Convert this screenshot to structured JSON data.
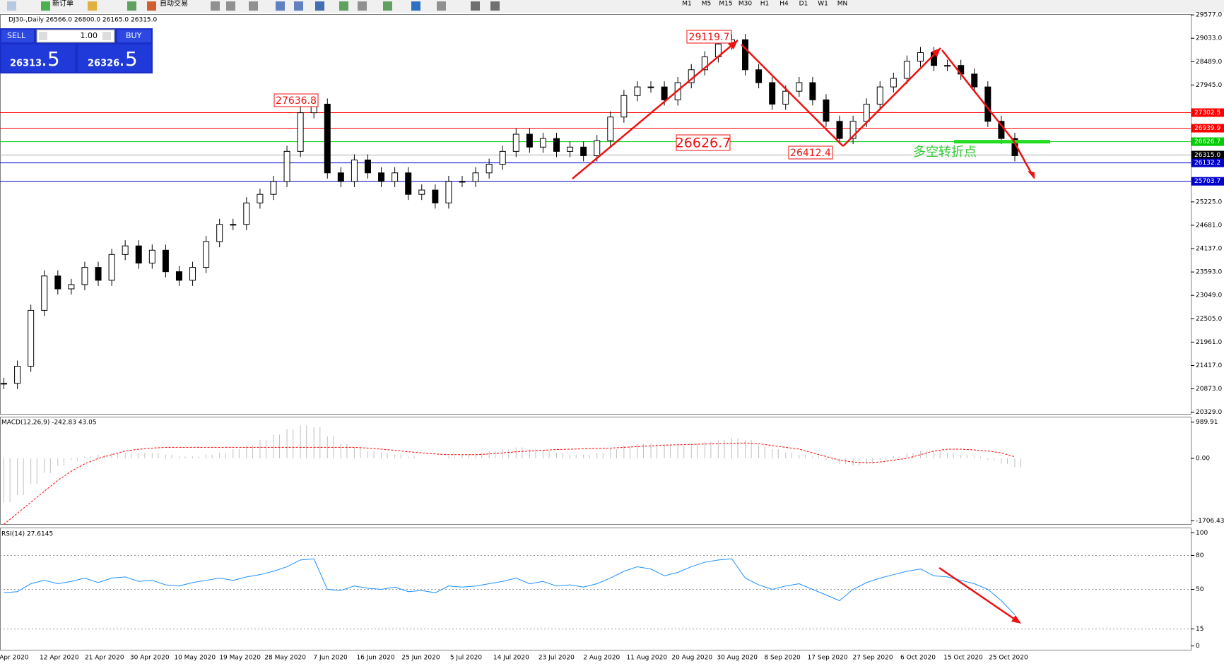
{
  "toolbar": {
    "new_order": "新订单",
    "auto_trading": "自动交易",
    "timeframes": [
      "M1",
      "M5",
      "M15",
      "M30",
      "H1",
      "H4",
      "D1",
      "W1",
      "MN"
    ]
  },
  "trade_panel": {
    "sell": "SELL",
    "volume": "1.00",
    "buy": "BUY",
    "bid_main": "26313",
    "bid_frac": ".5",
    "ask_main": "26326",
    "ask_frac": ".5"
  },
  "chart_data": [
    {
      "type": "candlestick",
      "title": "DJ30-,Daily  26566.0 26800.0 26165.0 26315.0",
      "values": [
        21000,
        21400,
        22700,
        23500,
        23200,
        23300,
        23700,
        23400,
        24000,
        24200,
        23800,
        24100,
        23600,
        23400,
        23700,
        24300,
        24700,
        24700,
        25200,
        25400,
        25700,
        26400,
        27300,
        27500,
        25900,
        25700,
        26200,
        25900,
        25700,
        25900,
        25400,
        25500,
        25200,
        25700,
        25700,
        25900,
        26100,
        26400,
        26800,
        26500,
        26700,
        26400,
        26500,
        26300,
        26650,
        27200,
        27700,
        27900,
        27900,
        27600,
        28000,
        28300,
        28600,
        28900,
        29000,
        28300,
        28000,
        27500,
        27800,
        28000,
        27600,
        27100,
        26700,
        27100,
        27500,
        27900,
        28100,
        28500,
        28700,
        28400,
        28400,
        28200,
        27900,
        27100,
        26700,
        26300
      ],
      "ylim": [
        20274,
        29595
      ],
      "yticks": [
        {
          "value": 29577,
          "label": "29577.0"
        },
        {
          "value": 29033,
          "label": "29033.0"
        },
        {
          "value": 28489,
          "label": "28489.0"
        },
        {
          "value": 27945,
          "label": "27945.0"
        },
        {
          "value": 25225,
          "label": "25225.0"
        },
        {
          "value": 24681,
          "label": "24681.0"
        },
        {
          "value": 24137,
          "label": "24137.0"
        },
        {
          "value": 23593,
          "label": "23593.0"
        },
        {
          "value": 23049,
          "label": "23049.0"
        },
        {
          "value": 22505,
          "label": "22505.0"
        },
        {
          "value": 21961,
          "label": "21961.0"
        },
        {
          "value": 21417,
          "label": "21417.0"
        },
        {
          "value": 20873,
          "label": "20873.0"
        },
        {
          "value": 20329,
          "label": "20329.0"
        }
      ],
      "levels": [
        27302.5,
        26939.9,
        26626.7,
        {
          "value": 26315,
          "label": "26315.0"
        },
        26132.2,
        25703.7
      ],
      "level_colors": [
        "#ff0000",
        "#ff0000",
        "#00cc00",
        "#000000",
        "#0000cc",
        "#0000cc"
      ],
      "peak_labels": [
        29119.7,
        27636.8,
        26412.4
      ],
      "turn_level": 26626.7,
      "turn_label": "多空转折点",
      "x_tick_labels": [
        "Apr 2020",
        "12 Apr 2020",
        "21 Apr 2020",
        "30 Apr 2020",
        "10 May 2020",
        "19 May 2020",
        "28 May 2020",
        "7 Jun 2020",
        "16 Jun 2020",
        "25 Jun 2020",
        "5 Jul 2020",
        "14 Jul 2020",
        "23 Jul 2020",
        "2 Aug 2020",
        "11 Aug 2020",
        "20 Aug 2020",
        "30 Aug 2020",
        "8 Sep 2020",
        "17 Sep 2020",
        "27 Sep 2020",
        "6 Oct 2020",
        "15 Oct 2020",
        "25 Oct 2020"
      ]
    },
    {
      "type": "macd",
      "title": "MACD(12,26,9) -242.83 43.05",
      "values": [
        -1200,
        -1000,
        -700,
        -400,
        -200,
        -50,
        50,
        100,
        150,
        150,
        150,
        150,
        100,
        50,
        50,
        100,
        150,
        250,
        350,
        500,
        650,
        800,
        900,
        850,
        600,
        400,
        300,
        200,
        150,
        100,
        50,
        0,
        0,
        50,
        100,
        150,
        200,
        250,
        300,
        250,
        200,
        150,
        100,
        100,
        150,
        250,
        350,
        400,
        400,
        350,
        350,
        400,
        450,
        500,
        550,
        500,
        350,
        250,
        150,
        100,
        50,
        -50,
        -150,
        -200,
        -150,
        -50,
        50,
        150,
        200,
        200,
        150,
        100,
        50,
        -50,
        -150,
        -242.83
      ],
      "signal": [
        -1800,
        -1500,
        -1200,
        -900,
        -600,
        -350,
        -150,
        0,
        100,
        200,
        250,
        280,
        300,
        300,
        300,
        300,
        300,
        300,
        300,
        300,
        300,
        300,
        300,
        300,
        300,
        300,
        300,
        280,
        250,
        220,
        180,
        150,
        120,
        100,
        100,
        100,
        120,
        150,
        180,
        200,
        220,
        240,
        250,
        260,
        270,
        280,
        300,
        320,
        340,
        360,
        370,
        380,
        390,
        400,
        410,
        420,
        400,
        350,
        300,
        250,
        150,
        50,
        -50,
        -100,
        -120,
        -100,
        -50,
        0,
        100,
        200,
        250,
        250,
        230,
        200,
        150,
        43.05
      ],
      "color": "#c0c0c0",
      "signal_color": "#ff0000",
      "ylim": [
        -1813,
        1118
      ],
      "yticks": [
        989.91,
        {
          "value": 0,
          "label": "0.00"
        },
        -1706.43
      ]
    },
    {
      "type": "rsi",
      "title": "RSI(14) 27.6145",
      "values": [
        47,
        48,
        55,
        58,
        55,
        57,
        60,
        56,
        60,
        61,
        57,
        58,
        54,
        53,
        56,
        58,
        60,
        58,
        61,
        63,
        66,
        70,
        76,
        77,
        50,
        49,
        53,
        51,
        50,
        52,
        48,
        49,
        47,
        53,
        52,
        53,
        55,
        57,
        60,
        55,
        57,
        53,
        54,
        52,
        55,
        60,
        66,
        70,
        68,
        62,
        65,
        70,
        74,
        76,
        77,
        60,
        54,
        50,
        53,
        55,
        50,
        45,
        40,
        50,
        56,
        60,
        63,
        66,
        68,
        62,
        61,
        58,
        55,
        50,
        40,
        27.6145
      ],
      "color": "#1e90ff",
      "ylim": [
        -4,
        104
      ],
      "yticks": [
        100,
        80,
        50,
        15,
        0
      ]
    }
  ]
}
